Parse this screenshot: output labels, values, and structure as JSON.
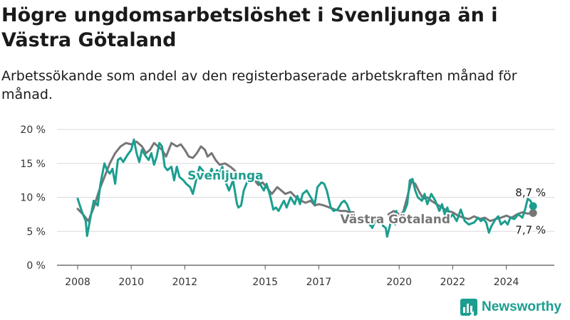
{
  "header": {
    "title": "Högre ungdomsarbetslöshet i Svenljunga än i Västra Götaland",
    "subtitle": "Arbetssökande som andel av den registerbaserade arbetskraften månad för månad."
  },
  "brand": {
    "name": "Newsworthy",
    "icon": "newsworthy-logo-icon",
    "color": "#1b9e8f"
  },
  "chart_data": {
    "type": "line",
    "title": "Högre ungdomsarbetslöshet i Svenljunga än i Västra Götaland",
    "subtitle": "Arbetssökande som andel av den registerbaserade arbetskraften månad för månad.",
    "x_ticks": [
      "2008",
      "2010",
      "2012",
      "2015",
      "2017",
      "2020",
      "2022",
      "2024"
    ],
    "y_ticks": [
      "0 %",
      "5 %",
      "10 %",
      "15 %",
      "20 %"
    ],
    "xlim": [
      2007.5,
      2025.5
    ],
    "ylim": [
      0,
      20
    ],
    "grid": true,
    "series": [
      {
        "name": "Svenljunga",
        "color": "#1b9e8f",
        "end_label": "8,7 %",
        "points": [
          [
            2008.0,
            9.8
          ],
          [
            2008.15,
            8.0
          ],
          [
            2008.3,
            6.5
          ],
          [
            2008.35,
            4.3
          ],
          [
            2008.5,
            7.5
          ],
          [
            2008.6,
            9.5
          ],
          [
            2008.75,
            8.8
          ],
          [
            2008.85,
            12.0
          ],
          [
            2009.0,
            15.0
          ],
          [
            2009.1,
            14.0
          ],
          [
            2009.2,
            13.5
          ],
          [
            2009.3,
            14.2
          ],
          [
            2009.4,
            12.0
          ],
          [
            2009.5,
            15.5
          ],
          [
            2009.6,
            15.8
          ],
          [
            2009.7,
            15.2
          ],
          [
            2009.85,
            16.2
          ],
          [
            2010.0,
            17.0
          ],
          [
            2010.1,
            18.5
          ],
          [
            2010.2,
            16.5
          ],
          [
            2010.3,
            15.2
          ],
          [
            2010.4,
            17.0
          ],
          [
            2010.55,
            16.0
          ],
          [
            2010.65,
            15.5
          ],
          [
            2010.75,
            16.5
          ],
          [
            2010.85,
            14.8
          ],
          [
            2010.95,
            16.0
          ],
          [
            2011.05,
            18.0
          ],
          [
            2011.15,
            17.5
          ],
          [
            2011.25,
            14.5
          ],
          [
            2011.35,
            14.0
          ],
          [
            2011.5,
            14.5
          ],
          [
            2011.6,
            12.5
          ],
          [
            2011.7,
            14.5
          ],
          [
            2011.8,
            13.0
          ],
          [
            2011.95,
            12.5
          ],
          [
            2012.05,
            12.0
          ],
          [
            2012.2,
            11.5
          ],
          [
            2012.3,
            10.5
          ],
          [
            2012.45,
            13.0
          ],
          [
            2012.55,
            14.5
          ],
          [
            2012.7,
            13.8
          ],
          [
            2012.8,
            12.8
          ],
          [
            2012.9,
            13.2
          ],
          [
            2013.0,
            14.2
          ],
          [
            2013.1,
            13.0
          ],
          [
            2013.2,
            14.0
          ],
          [
            2013.3,
            13.5
          ],
          [
            2013.4,
            14.5
          ],
          [
            2013.55,
            12.0
          ],
          [
            2013.65,
            11.0
          ],
          [
            2013.8,
            12.5
          ],
          [
            2013.95,
            9.0
          ],
          [
            2014.0,
            8.5
          ],
          [
            2014.1,
            8.8
          ],
          [
            2014.2,
            11.0
          ],
          [
            2014.35,
            12.5
          ],
          [
            2014.5,
            13.0
          ],
          [
            2014.65,
            12.8
          ],
          [
            2014.8,
            12.0
          ],
          [
            2014.95,
            11.0
          ],
          [
            2015.05,
            12.0
          ],
          [
            2015.2,
            10.0
          ],
          [
            2015.3,
            8.2
          ],
          [
            2015.4,
            8.5
          ],
          [
            2015.5,
            8.0
          ],
          [
            2015.6,
            8.8
          ],
          [
            2015.7,
            9.5
          ],
          [
            2015.8,
            8.5
          ],
          [
            2015.95,
            10.0
          ],
          [
            2016.1,
            9.0
          ],
          [
            2016.2,
            10.2
          ],
          [
            2016.3,
            9.0
          ],
          [
            2016.4,
            10.5
          ],
          [
            2016.55,
            11.0
          ],
          [
            2016.7,
            10.0
          ],
          [
            2016.85,
            9.0
          ],
          [
            2016.95,
            11.5
          ],
          [
            2017.1,
            12.2
          ],
          [
            2017.2,
            12.0
          ],
          [
            2017.3,
            11.0
          ],
          [
            2017.45,
            8.5
          ],
          [
            2017.55,
            8.0
          ],
          [
            2017.7,
            8.2
          ],
          [
            2017.85,
            9.2
          ],
          [
            2017.95,
            9.5
          ],
          [
            2018.05,
            9.0
          ],
          [
            2018.15,
            8.0
          ],
          null,
          [
            2018.9,
            6.0
          ],
          [
            2019.0,
            5.5
          ],
          [
            2019.15,
            7.0
          ],
          [
            2019.3,
            7.2
          ],
          [
            2019.4,
            5.8
          ],
          [
            2019.5,
            5.5
          ],
          [
            2019.55,
            4.2
          ],
          [
            2019.7,
            6.5
          ],
          [
            2019.8,
            7.0
          ],
          [
            2019.9,
            8.0
          ],
          null,
          [
            2019.85,
            6.0
          ],
          [
            2019.95,
            6.8
          ],
          [
            2020.1,
            7.5
          ],
          [
            2020.2,
            8.0
          ],
          [
            2020.3,
            9.0
          ],
          [
            2020.4,
            12.5
          ],
          [
            2020.5,
            12.7
          ],
          [
            2020.6,
            11.0
          ],
          [
            2020.7,
            10.0
          ],
          [
            2020.85,
            9.5
          ],
          [
            2020.95,
            10.5
          ],
          [
            2021.05,
            9.0
          ],
          [
            2021.2,
            10.5
          ],
          [
            2021.35,
            9.5
          ],
          [
            2021.5,
            8.0
          ],
          [
            2021.6,
            9.0
          ],
          [
            2021.7,
            7.5
          ],
          [
            2021.8,
            8.5
          ],
          [
            2021.9,
            7.0
          ],
          [
            2022.0,
            7.5
          ],
          [
            2022.15,
            6.5
          ],
          [
            2022.3,
            8.2
          ],
          [
            2022.45,
            6.5
          ],
          [
            2022.6,
            6.0
          ],
          [
            2022.8,
            6.3
          ],
          [
            2022.95,
            7.0
          ],
          [
            2023.05,
            6.5
          ],
          [
            2023.15,
            6.8
          ],
          [
            2023.25,
            6.3
          ],
          [
            2023.35,
            4.8
          ],
          [
            2023.45,
            5.8
          ],
          [
            2023.6,
            6.8
          ],
          [
            2023.7,
            7.2
          ],
          [
            2023.8,
            6.0
          ],
          [
            2023.95,
            6.5
          ],
          [
            2024.05,
            6.0
          ],
          [
            2024.15,
            7.0
          ],
          [
            2024.3,
            6.8
          ],
          [
            2024.45,
            7.5
          ],
          [
            2024.6,
            7.0
          ],
          [
            2024.7,
            8.2
          ],
          [
            2024.8,
            9.8
          ],
          [
            2024.9,
            9.5
          ],
          [
            2025.0,
            8.7
          ]
        ]
      },
      {
        "name": "Västra Götaland",
        "color": "#767676",
        "end_label": "7,7 %",
        "points": [
          [
            2008.0,
            8.3
          ],
          [
            2008.2,
            7.5
          ],
          [
            2008.4,
            6.5
          ],
          [
            2008.6,
            8.5
          ],
          [
            2008.8,
            11.0
          ],
          [
            2009.0,
            13.0
          ],
          [
            2009.2,
            15.0
          ],
          [
            2009.4,
            16.5
          ],
          [
            2009.6,
            17.5
          ],
          [
            2009.8,
            18.0
          ],
          [
            2010.0,
            17.8
          ],
          [
            2010.2,
            18.2
          ],
          [
            2010.4,
            17.5
          ],
          [
            2010.55,
            16.5
          ],
          [
            2010.7,
            17.0
          ],
          [
            2010.85,
            18.0
          ],
          [
            2011.0,
            17.5
          ],
          [
            2011.15,
            17.0
          ],
          [
            2011.3,
            16.0
          ],
          [
            2011.5,
            18.0
          ],
          [
            2011.7,
            17.5
          ],
          [
            2011.85,
            17.8
          ],
          [
            2012.0,
            17.0
          ],
          [
            2012.15,
            16.0
          ],
          [
            2012.3,
            15.8
          ],
          [
            2012.45,
            16.5
          ],
          [
            2012.6,
            17.5
          ],
          [
            2012.75,
            17.0
          ],
          [
            2012.85,
            16.0
          ],
          [
            2013.0,
            16.5
          ],
          [
            2013.15,
            15.5
          ],
          [
            2013.3,
            14.8
          ],
          [
            2013.5,
            15.0
          ],
          [
            2013.7,
            14.5
          ],
          [
            2013.85,
            14.0
          ],
          [
            2014.0,
            13.0
          ],
          [
            2014.2,
            13.5
          ],
          [
            2014.4,
            12.8
          ],
          [
            2014.6,
            12.5
          ],
          [
            2014.75,
            11.8
          ],
          [
            2014.9,
            12.2
          ],
          [
            2015.05,
            11.5
          ],
          [
            2015.25,
            10.5
          ],
          [
            2015.45,
            11.5
          ],
          [
            2015.6,
            11.0
          ],
          [
            2015.75,
            10.5
          ],
          [
            2015.95,
            10.8
          ],
          [
            2016.15,
            10.0
          ],
          [
            2016.35,
            9.5
          ],
          [
            2016.5,
            9.2
          ],
          [
            2016.7,
            9.5
          ],
          [
            2016.85,
            8.8
          ],
          [
            2017.0,
            9.0
          ],
          [
            2017.2,
            8.8
          ],
          [
            2017.4,
            8.5
          ],
          [
            2017.6,
            8.2
          ],
          [
            2017.8,
            8.0
          ],
          [
            2018.0,
            8.0
          ],
          [
            2018.15,
            7.8
          ],
          [
            2018.3,
            7.8
          ],
          null,
          [
            2019.6,
            7.5
          ],
          [
            2019.8,
            8.0
          ],
          [
            2020.0,
            7.5
          ],
          [
            2020.15,
            7.8
          ],
          [
            2020.3,
            10.0
          ],
          [
            2020.45,
            12.3
          ],
          [
            2020.6,
            12.0
          ],
          [
            2020.75,
            10.8
          ],
          [
            2020.9,
            9.8
          ],
          [
            2021.05,
            10.0
          ],
          [
            2021.2,
            9.5
          ],
          [
            2021.4,
            9.0
          ],
          [
            2021.6,
            8.5
          ],
          [
            2021.8,
            8.0
          ],
          [
            2022.0,
            7.8
          ],
          [
            2022.2,
            7.3
          ],
          [
            2022.4,
            7.0
          ],
          [
            2022.6,
            6.8
          ],
          [
            2022.8,
            7.2
          ],
          [
            2023.0,
            6.8
          ],
          [
            2023.2,
            7.0
          ],
          [
            2023.4,
            6.5
          ],
          [
            2023.6,
            6.8
          ],
          [
            2023.8,
            7.0
          ],
          [
            2024.0,
            7.3
          ],
          [
            2024.2,
            7.0
          ],
          [
            2024.4,
            7.5
          ],
          [
            2024.6,
            7.8
          ],
          [
            2024.8,
            7.6
          ],
          [
            2025.0,
            7.7
          ]
        ]
      }
    ]
  }
}
